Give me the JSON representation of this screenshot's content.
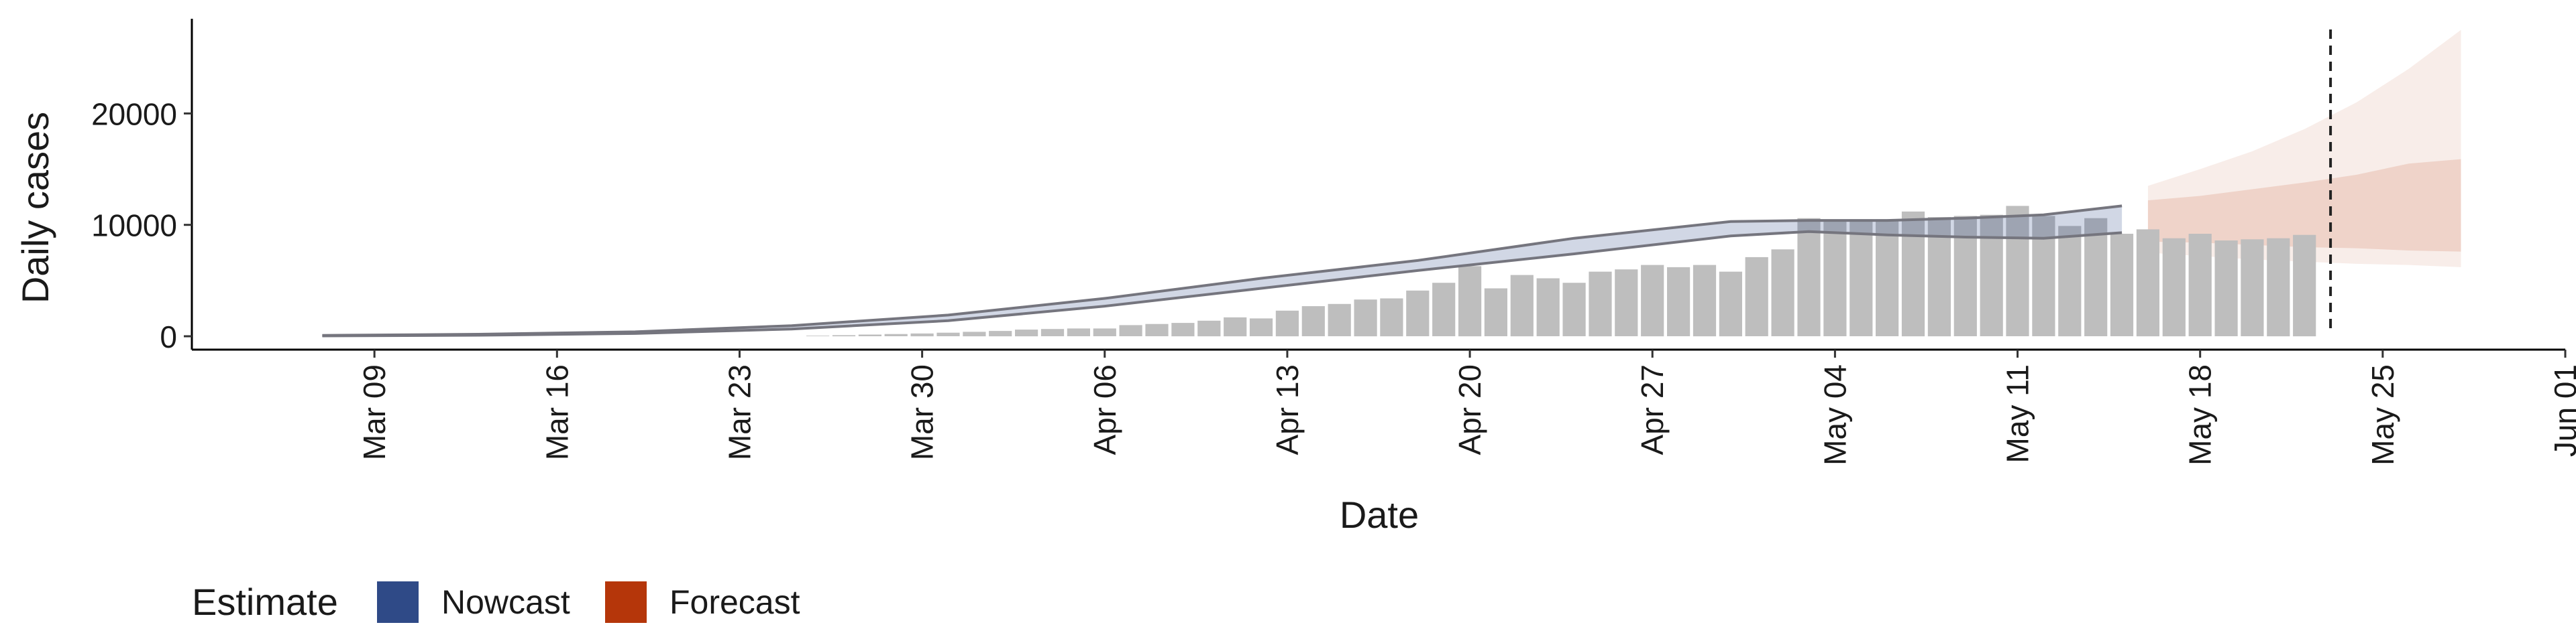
{
  "chart_data": {
    "type": "bar",
    "xlabel": "Date",
    "ylabel": "Daily cases",
    "x_tick_labels": [
      "Mar 09",
      "Mar 16",
      "Mar 23",
      "Mar 30",
      "Apr 06",
      "Apr 13",
      "Apr 20",
      "Apr 27",
      "May 04",
      "May 11",
      "May 18",
      "May 25",
      "Jun 01"
    ],
    "y_tick_labels": [
      "0",
      "10000",
      "20000"
    ],
    "ylim": [
      -1200,
      28500
    ],
    "xlim": [
      "2020-03-02",
      "2020-06-01"
    ],
    "grid": false,
    "legend": {
      "position": "bottom-left",
      "title": "Estimate",
      "entries": [
        {
          "label": "Nowcast",
          "color": "#2F4A87"
        },
        {
          "label": "Forecast",
          "color": "#B5360A"
        }
      ]
    },
    "reference_line": {
      "type": "dashed-vertical",
      "x": "2020-05-23"
    },
    "bars": {
      "name": "Reported cases",
      "color": "#BEBEBE",
      "start_date": "2020-03-08",
      "values": [
        0,
        0,
        0,
        0,
        0,
        0,
        0,
        0,
        0,
        0,
        0,
        0,
        0,
        0,
        0,
        0,
        0,
        0,
        50,
        100,
        150,
        200,
        250,
        320,
        400,
        480,
        600,
        650,
        700,
        700,
        1000,
        1100,
        1200,
        1400,
        1700,
        1600,
        2300,
        2700,
        2900,
        3300,
        3400,
        4100,
        4800,
        6300,
        4300,
        5500,
        5200,
        4800,
        5800,
        6000,
        6400,
        6200,
        6400,
        5800,
        7100,
        7800,
        10600,
        10300,
        10500,
        10500,
        11200,
        10700,
        10800,
        10900,
        11700,
        10800,
        9900,
        10600,
        9200,
        9600,
        8800,
        9200,
        8600,
        8700,
        8800,
        9100
      ]
    },
    "nowcast": {
      "color": "#2F4A87",
      "x": [
        "2020-03-07",
        "2020-03-13",
        "2020-03-19",
        "2020-03-25",
        "2020-03-31",
        "2020-04-06",
        "2020-04-12",
        "2020-04-18",
        "2020-04-24",
        "2020-04-30",
        "2020-05-03",
        "2020-05-06",
        "2020-05-09",
        "2020-05-12",
        "2020-05-15"
      ],
      "median": [
        50,
        120,
        300,
        800,
        1600,
        3000,
        4700,
        6300,
        8000,
        9600,
        10000,
        9900,
        9700,
        9900,
        10600
      ],
      "lower": [
        30,
        90,
        250,
        650,
        1400,
        2700,
        4300,
        5900,
        7400,
        9000,
        9400,
        9100,
        8900,
        8800,
        9300
      ],
      "upper": [
        80,
        180,
        400,
        950,
        1900,
        3400,
        5200,
        6800,
        8800,
        10300,
        10400,
        10400,
        10600,
        10900,
        11700
      ]
    },
    "forecast": {
      "color": "#B5360A",
      "x": [
        "2020-05-16",
        "2020-05-18",
        "2020-05-20",
        "2020-05-22",
        "2020-05-24",
        "2020-05-26",
        "2020-05-28"
      ],
      "median": [
        10500,
        10700,
        11000,
        11300,
        11700,
        12000,
        12000
      ],
      "inner_lower": [
        8500,
        8400,
        8200,
        8000,
        7900,
        7700,
        7600
      ],
      "inner_upper": [
        12200,
        12600,
        13200,
        13800,
        14500,
        15500,
        15900
      ],
      "outer_lower": [
        7500,
        7200,
        6900,
        6700,
        6500,
        6400,
        6200
      ],
      "outer_upper": [
        13500,
        15000,
        16600,
        18600,
        21000,
        24000,
        27500
      ]
    }
  }
}
